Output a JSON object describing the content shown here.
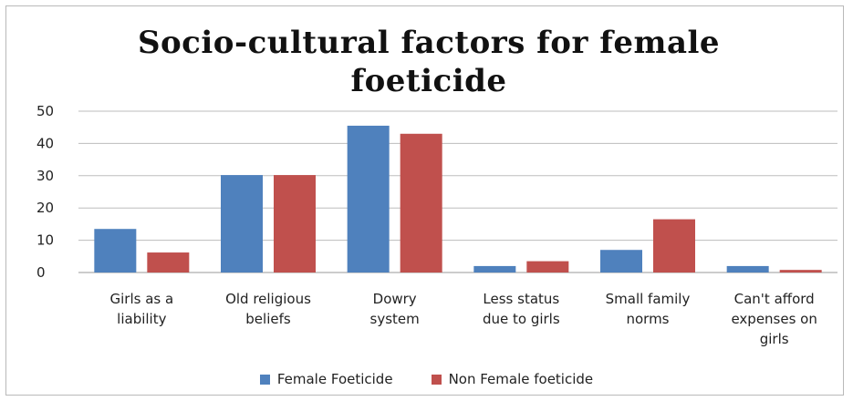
{
  "chart_data": {
    "type": "bar",
    "title": "Socio-cultural factors for female foeticide",
    "xlabel": "",
    "ylabel": "",
    "ylim": [
      0,
      50
    ],
    "yticks": [
      "0",
      "10",
      "20",
      "30",
      "40",
      "50"
    ],
    "grid": true,
    "legend_position": "bottom",
    "categories": [
      "Girls as a liability",
      "Old religious beliefs",
      "Dowry system",
      "Less status due to girls",
      "Small family norms",
      "Can't afford expenses on girls"
    ],
    "category_lines": [
      [
        "Girls as a",
        "liability"
      ],
      [
        "Old religious",
        "beliefs"
      ],
      [
        "Dowry",
        "system"
      ],
      [
        "Less status",
        "due to girls"
      ],
      [
        "Small family",
        "norms"
      ],
      [
        "Can't afford",
        "expenses on",
        "girls"
      ]
    ],
    "series": [
      {
        "name": "Female Foeticide",
        "color": "#4f81bd",
        "values": [
          13.5,
          30.2,
          45.5,
          2.0,
          7.0,
          2.0
        ]
      },
      {
        "name": "Non Female  foeticide",
        "color": "#c0504d",
        "values": [
          6.2,
          30.2,
          43.0,
          3.5,
          16.5,
          0.8
        ]
      }
    ]
  }
}
